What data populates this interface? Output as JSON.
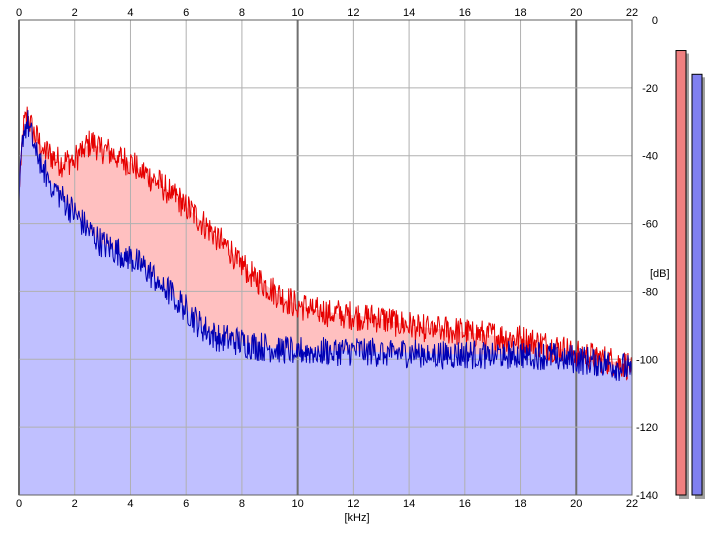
{
  "chart_data": {
    "type": "area",
    "xlabel": "[kHz]",
    "ylabel": "[dB]",
    "xlim": [
      0,
      22
    ],
    "ylim": [
      -140,
      0
    ],
    "x_ticks": [
      "0",
      "2",
      "4",
      "6",
      "8",
      "10",
      "12",
      "14",
      "16",
      "18",
      "20",
      "22"
    ],
    "y_ticks": [
      "0",
      "-20",
      "-40",
      "-60",
      "-80",
      "-100",
      "-120",
      "-140"
    ],
    "grid": true,
    "series": [
      {
        "color": "#e60000",
        "fill": "#ffc0c0",
        "x": [
          0,
          0.15,
          0.3,
          0.5,
          0.8,
          1.0,
          1.5,
          2.0,
          2.3,
          2.6,
          3.0,
          3.5,
          4.0,
          4.5,
          5.0,
          5.5,
          6.0,
          6.5,
          7.0,
          7.5,
          8.0,
          8.5,
          9.0,
          9.5,
          10.0,
          10.5,
          11.0,
          11.5,
          12.0,
          12.5,
          13.0,
          13.5,
          14.0,
          14.5,
          15.0,
          15.5,
          16.0,
          16.5,
          17.0,
          17.5,
          18.0,
          18.5,
          19.0,
          19.5,
          20.0,
          20.5,
          21.0,
          21.5,
          22.0
        ],
        "y": [
          -50,
          -32,
          -28,
          -33,
          -37,
          -39,
          -42,
          -41,
          -38,
          -36,
          -38,
          -40,
          -42,
          -45,
          -48,
          -51,
          -55,
          -59,
          -63,
          -67,
          -72,
          -76,
          -79,
          -82,
          -84,
          -85,
          -86,
          -86.5,
          -87,
          -87.5,
          -88,
          -89,
          -90,
          -90.5,
          -91,
          -91.5,
          -92,
          -92.5,
          -93,
          -93.5,
          -94,
          -95,
          -96,
          -97,
          -98,
          -99,
          -100,
          -101,
          -102
        ]
      },
      {
        "color": "#0000b4",
        "fill": "#c0c0ff",
        "x": [
          0,
          0.15,
          0.3,
          0.5,
          0.8,
          1.0,
          1.5,
          2.0,
          2.5,
          3.0,
          3.5,
          4.0,
          4.5,
          5.0,
          5.5,
          6.0,
          6.5,
          7.0,
          7.5,
          8.0,
          8.5,
          9.0,
          9.5,
          10.0,
          10.5,
          11.0,
          11.5,
          12.0,
          12.5,
          13.0,
          13.5,
          14.0,
          14.5,
          15.0,
          15.5,
          16.0,
          16.5,
          17.0,
          17.5,
          18.0,
          18.5,
          19.0,
          19.5,
          20.0,
          20.5,
          21.0,
          21.5,
          22.0
        ],
        "y": [
          -52,
          -33,
          -30,
          -36,
          -42,
          -46,
          -52,
          -57,
          -62,
          -66,
          -68,
          -70,
          -73,
          -77,
          -81,
          -85,
          -90,
          -93,
          -94,
          -95,
          -96,
          -96.5,
          -97,
          -97.5,
          -97.5,
          -97.5,
          -97.5,
          -97.5,
          -97.5,
          -98,
          -98,
          -98,
          -98,
          -98.5,
          -98.5,
          -98.5,
          -98.5,
          -98.5,
          -98.5,
          -98.5,
          -98.5,
          -99,
          -99.5,
          -100,
          -100.5,
          -101,
          -102,
          -103
        ]
      }
    ],
    "level_meters": [
      {
        "color": "#f08080",
        "level_db": -9
      },
      {
        "color": "#8080f0",
        "level_db": -16
      }
    ]
  }
}
